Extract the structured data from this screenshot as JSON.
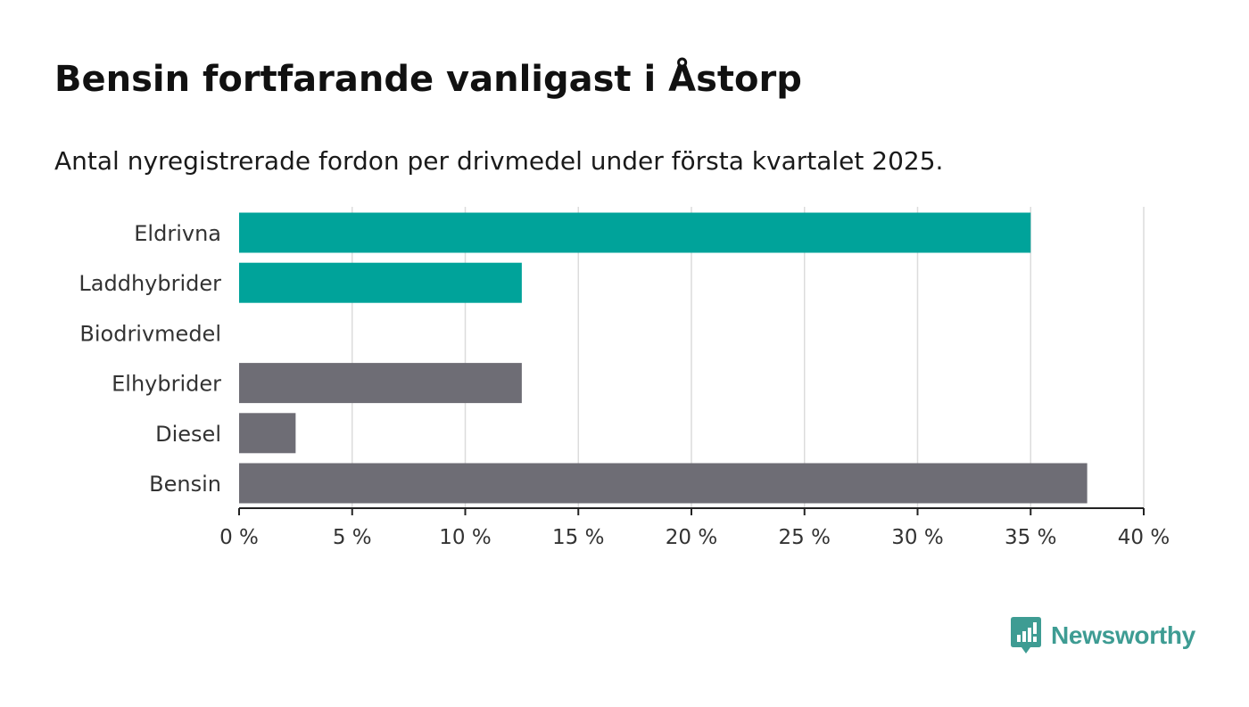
{
  "header": {
    "title": "Bensin fortfarande vanligast i Åstorp",
    "subtitle": "Antal nyregistrerade fordon per drivmedel under första kvartalet 2025."
  },
  "brand": {
    "name": "Newsworthy",
    "icon": "newsworthy-logo-icon",
    "color": "#3e9c93"
  },
  "colors": {
    "highlight": "#00a39a",
    "default": "#6e6d75",
    "grid": "#dcdcdc",
    "axis": "#222222"
  },
  "chart_data": {
    "type": "bar",
    "orientation": "horizontal",
    "categories": [
      "Eldrivna",
      "Laddhybrider",
      "Biodrivmedel",
      "Elhybrider",
      "Diesel",
      "Bensin"
    ],
    "values": [
      35,
      12.5,
      0,
      12.5,
      2.5,
      37.5
    ],
    "highlighted": [
      true,
      true,
      false,
      false,
      false,
      false
    ],
    "xlim": [
      0,
      40
    ],
    "xticks": [
      0,
      5,
      10,
      15,
      20,
      25,
      30,
      35,
      40
    ],
    "xtick_labels": [
      "0 %",
      "5 %",
      "10 %",
      "15 %",
      "20 %",
      "25 %",
      "30 %",
      "35 %",
      "40 %"
    ],
    "grid": true,
    "xlabel": "",
    "ylabel": ""
  }
}
